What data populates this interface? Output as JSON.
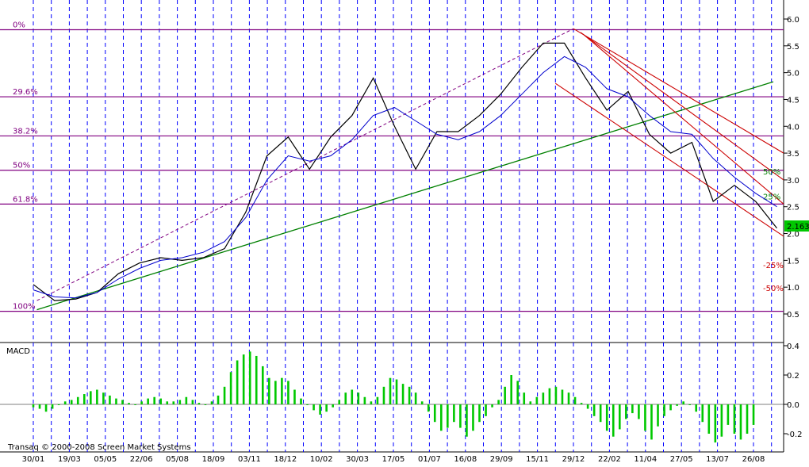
{
  "footer": {
    "copyright": "Transaq © 2000-2008 Screen Market Systems"
  },
  "colors": {
    "price": "#000000",
    "moving_average": "#0000cc",
    "fibonacci": "#800080",
    "trend_support": "#008000",
    "channel": "#cc0000",
    "grid": "#0000ff",
    "macd_histogram": "#00c800",
    "last_price_badge": "#00c800"
  },
  "chart_data": [
    {
      "type": "line",
      "panel": "price",
      "x_axis": {
        "ticks": [
          "30/01",
          "19/03",
          "05/05",
          "22/06",
          "05/08",
          "18/09",
          "03/11",
          "18/12",
          "10/02",
          "30/03",
          "17/05",
          "01/07",
          "16/08",
          "29/09",
          "15/11",
          "29/12",
          "22/02",
          "11/04",
          "27/05",
          "13/07",
          "26/08"
        ]
      },
      "y_axis": {
        "ticks": [
          "6.0",
          "5.5",
          "5.0",
          "4.5",
          "4.0",
          "3.5",
          "3.0",
          "2.5",
          "2.0",
          "1.5",
          "1.0",
          "0.5"
        ],
        "ylim": [
          0.3,
          6.2
        ]
      },
      "last_price": "2.163",
      "fibonacci_levels": [
        {
          "label": "0%",
          "value": 5.8
        },
        {
          "label": "29.6%",
          "value": 4.55
        },
        {
          "label": "38.2%",
          "value": 3.82
        },
        {
          "label": "50%",
          "value": 3.18
        },
        {
          "label": "61.8%",
          "value": 2.55
        },
        {
          "label": "100%",
          "value": 0.55
        }
      ],
      "channel_labels": [
        {
          "label": "50%",
          "color": "green",
          "value": 3.15
        },
        {
          "label": "25%",
          "color": "green",
          "value": 2.68
        },
        {
          "label": "-25%",
          "color": "red",
          "value": 1.4
        },
        {
          "label": "-50%",
          "color": "red",
          "value": 0.97
        }
      ],
      "series": [
        {
          "role": "price",
          "points": [
            [
              0,
              1.05
            ],
            [
              1,
              0.75
            ],
            [
              2,
              0.78
            ],
            [
              3,
              0.9
            ],
            [
              4,
              1.25
            ],
            [
              5,
              1.45
            ],
            [
              6,
              1.55
            ],
            [
              7,
              1.5
            ],
            [
              8,
              1.55
            ],
            [
              9,
              1.72
            ],
            [
              10,
              2.4
            ],
            [
              11,
              3.45
            ],
            [
              12,
              3.8
            ],
            [
              13,
              3.2
            ],
            [
              14,
              3.8
            ],
            [
              15,
              4.2
            ],
            [
              16,
              4.9
            ],
            [
              17,
              4.0
            ],
            [
              18,
              3.2
            ],
            [
              19,
              3.9
            ],
            [
              20,
              3.9
            ],
            [
              21,
              4.2
            ],
            [
              22,
              4.6
            ],
            [
              23,
              5.1
            ],
            [
              24,
              5.55
            ],
            [
              25,
              5.55
            ],
            [
              26,
              4.9
            ],
            [
              27,
              4.3
            ],
            [
              28,
              4.65
            ],
            [
              29,
              3.85
            ],
            [
              30,
              3.5
            ],
            [
              31,
              3.7
            ],
            [
              32,
              2.6
            ],
            [
              33,
              2.9
            ],
            [
              34,
              2.6
            ],
            [
              35,
              2.1
            ]
          ]
        },
        {
          "role": "moving_average",
          "points": [
            [
              0,
              0.95
            ],
            [
              1,
              0.82
            ],
            [
              2,
              0.8
            ],
            [
              3,
              0.9
            ],
            [
              4,
              1.15
            ],
            [
              5,
              1.35
            ],
            [
              6,
              1.5
            ],
            [
              7,
              1.55
            ],
            [
              8,
              1.65
            ],
            [
              9,
              1.85
            ],
            [
              10,
              2.3
            ],
            [
              11,
              3.0
            ],
            [
              12,
              3.45
            ],
            [
              13,
              3.35
            ],
            [
              14,
              3.45
            ],
            [
              15,
              3.75
            ],
            [
              16,
              4.2
            ],
            [
              17,
              4.35
            ],
            [
              18,
              4.1
            ],
            [
              19,
              3.85
            ],
            [
              20,
              3.75
            ],
            [
              21,
              3.9
            ],
            [
              22,
              4.2
            ],
            [
              23,
              4.6
            ],
            [
              24,
              5.0
            ],
            [
              25,
              5.3
            ],
            [
              26,
              5.1
            ],
            [
              27,
              4.7
            ],
            [
              28,
              4.55
            ],
            [
              29,
              4.2
            ],
            [
              30,
              3.9
            ],
            [
              31,
              3.85
            ],
            [
              32,
              3.4
            ],
            [
              33,
              3.05
            ],
            [
              34,
              2.75
            ],
            [
              35,
              2.5
            ]
          ]
        }
      ]
    },
    {
      "type": "bar",
      "panel": "macd",
      "title": "MACD",
      "y_axis": {
        "ticks": [
          "0.4",
          "0.2",
          "0.0",
          "-0.2"
        ],
        "ylim": [
          -0.3,
          0.42
        ]
      },
      "histogram": [
        [
          0,
          -0.02
        ],
        [
          0.3,
          -0.03
        ],
        [
          0.6,
          -0.05
        ],
        [
          0.9,
          -0.03
        ],
        [
          1.2,
          0.0
        ],
        [
          1.5,
          0.02
        ],
        [
          1.8,
          0.03
        ],
        [
          2.1,
          0.05
        ],
        [
          2.4,
          0.07
        ],
        [
          2.7,
          0.09
        ],
        [
          3.0,
          0.1
        ],
        [
          3.3,
          0.08
        ],
        [
          3.6,
          0.06
        ],
        [
          3.9,
          0.04
        ],
        [
          4.2,
          0.03
        ],
        [
          4.5,
          0.01
        ],
        [
          4.8,
          0.0
        ],
        [
          5.1,
          0.02
        ],
        [
          5.4,
          0.04
        ],
        [
          5.7,
          0.05
        ],
        [
          6.0,
          0.04
        ],
        [
          6.3,
          0.02
        ],
        [
          6.6,
          0.02
        ],
        [
          6.9,
          0.03
        ],
        [
          7.2,
          0.05
        ],
        [
          7.5,
          0.03
        ],
        [
          7.8,
          0.01
        ],
        [
          8.1,
          0.0
        ],
        [
          8.4,
          0.02
        ],
        [
          8.7,
          0.06
        ],
        [
          9.0,
          0.12
        ],
        [
          9.3,
          0.22
        ],
        [
          9.6,
          0.3
        ],
        [
          9.9,
          0.34
        ],
        [
          10.2,
          0.36
        ],
        [
          10.5,
          0.33
        ],
        [
          10.8,
          0.26
        ],
        [
          11.1,
          0.18
        ],
        [
          11.4,
          0.16
        ],
        [
          11.7,
          0.18
        ],
        [
          12.0,
          0.16
        ],
        [
          12.3,
          0.1
        ],
        [
          12.6,
          0.04
        ],
        [
          12.9,
          0.0
        ],
        [
          13.2,
          -0.04
        ],
        [
          13.5,
          -0.07
        ],
        [
          13.8,
          -0.05
        ],
        [
          14.1,
          -0.02
        ],
        [
          14.4,
          0.03
        ],
        [
          14.7,
          0.08
        ],
        [
          15.0,
          0.1
        ],
        [
          15.3,
          0.08
        ],
        [
          15.6,
          0.05
        ],
        [
          15.9,
          0.02
        ],
        [
          16.2,
          0.05
        ],
        [
          16.5,
          0.12
        ],
        [
          16.8,
          0.18
        ],
        [
          17.1,
          0.17
        ],
        [
          17.4,
          0.14
        ],
        [
          17.7,
          0.12
        ],
        [
          18.0,
          0.08
        ],
        [
          18.3,
          0.02
        ],
        [
          18.6,
          -0.05
        ],
        [
          18.9,
          -0.12
        ],
        [
          19.2,
          -0.18
        ],
        [
          19.5,
          -0.16
        ],
        [
          19.8,
          -0.12
        ],
        [
          20.1,
          -0.16
        ],
        [
          20.4,
          -0.22
        ],
        [
          20.7,
          -0.18
        ],
        [
          21.0,
          -0.12
        ],
        [
          21.3,
          -0.08
        ],
        [
          21.6,
          -0.02
        ],
        [
          21.9,
          0.03
        ],
        [
          22.2,
          0.12
        ],
        [
          22.5,
          0.2
        ],
        [
          22.8,
          0.16
        ],
        [
          23.1,
          0.08
        ],
        [
          23.4,
          0.02
        ],
        [
          23.7,
          0.05
        ],
        [
          24.0,
          0.08
        ],
        [
          24.3,
          0.11
        ],
        [
          24.6,
          0.12
        ],
        [
          24.9,
          0.1
        ],
        [
          25.2,
          0.08
        ],
        [
          25.5,
          0.05
        ],
        [
          25.8,
          0.01
        ],
        [
          26.1,
          -0.03
        ],
        [
          26.4,
          -0.08
        ],
        [
          26.7,
          -0.12
        ],
        [
          27.0,
          -0.18
        ],
        [
          27.3,
          -0.22
        ],
        [
          27.6,
          -0.17
        ],
        [
          27.9,
          -0.1
        ],
        [
          28.2,
          -0.06
        ],
        [
          28.5,
          -0.1
        ],
        [
          28.8,
          -0.18
        ],
        [
          29.1,
          -0.24
        ],
        [
          29.4,
          -0.15
        ],
        [
          29.7,
          -0.08
        ],
        [
          30.0,
          -0.04
        ],
        [
          30.3,
          -0.01
        ],
        [
          30.6,
          0.02
        ],
        [
          30.9,
          0.0
        ],
        [
          31.2,
          -0.05
        ],
        [
          31.5,
          -0.12
        ],
        [
          31.8,
          -0.2
        ],
        [
          32.1,
          -0.26
        ],
        [
          32.4,
          -0.22
        ],
        [
          32.7,
          -0.14
        ],
        [
          33.0,
          -0.2
        ],
        [
          33.3,
          -0.24
        ],
        [
          33.6,
          -0.2
        ],
        [
          33.9,
          -0.14
        ]
      ]
    }
  ]
}
